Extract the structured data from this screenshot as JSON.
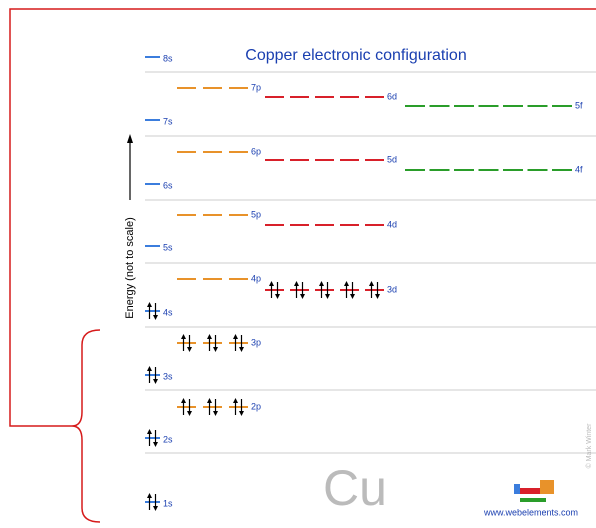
{
  "title": "Copper electronic configuration",
  "axis_label": "Energy (not to scale)",
  "element": "Cu",
  "site": "www.webelements.com",
  "credit": "© Mark Winter",
  "orbitals": [
    {
      "label": "8s",
      "color": "#3b7ddd"
    },
    {
      "label": "7s",
      "color": "#3b7ddd"
    },
    {
      "label": "6s",
      "color": "#3b7ddd"
    },
    {
      "label": "5s",
      "color": "#3b7ddd"
    },
    {
      "label": "4s",
      "color": "#3b7ddd"
    },
    {
      "label": "3s",
      "color": "#3b7ddd"
    },
    {
      "label": "2s",
      "color": "#3b7ddd"
    },
    {
      "label": "1s",
      "color": "#3b7ddd"
    },
    {
      "label": "7p",
      "color": "#e8922a"
    },
    {
      "label": "6p",
      "color": "#e8922a"
    },
    {
      "label": "5p",
      "color": "#e8922a"
    },
    {
      "label": "4p",
      "color": "#e8922a"
    },
    {
      "label": "3p",
      "color": "#e8922a"
    },
    {
      "label": "2p",
      "color": "#e8922a"
    },
    {
      "label": "6d",
      "color": "#d8202a"
    },
    {
      "label": "5d",
      "color": "#d8202a"
    },
    {
      "label": "4d",
      "color": "#d8202a"
    },
    {
      "label": "3d",
      "color": "#d8202a"
    },
    {
      "label": "5f",
      "color": "#2a9d2a"
    },
    {
      "label": "4f",
      "color": "#2a9d2a"
    }
  ]
}
